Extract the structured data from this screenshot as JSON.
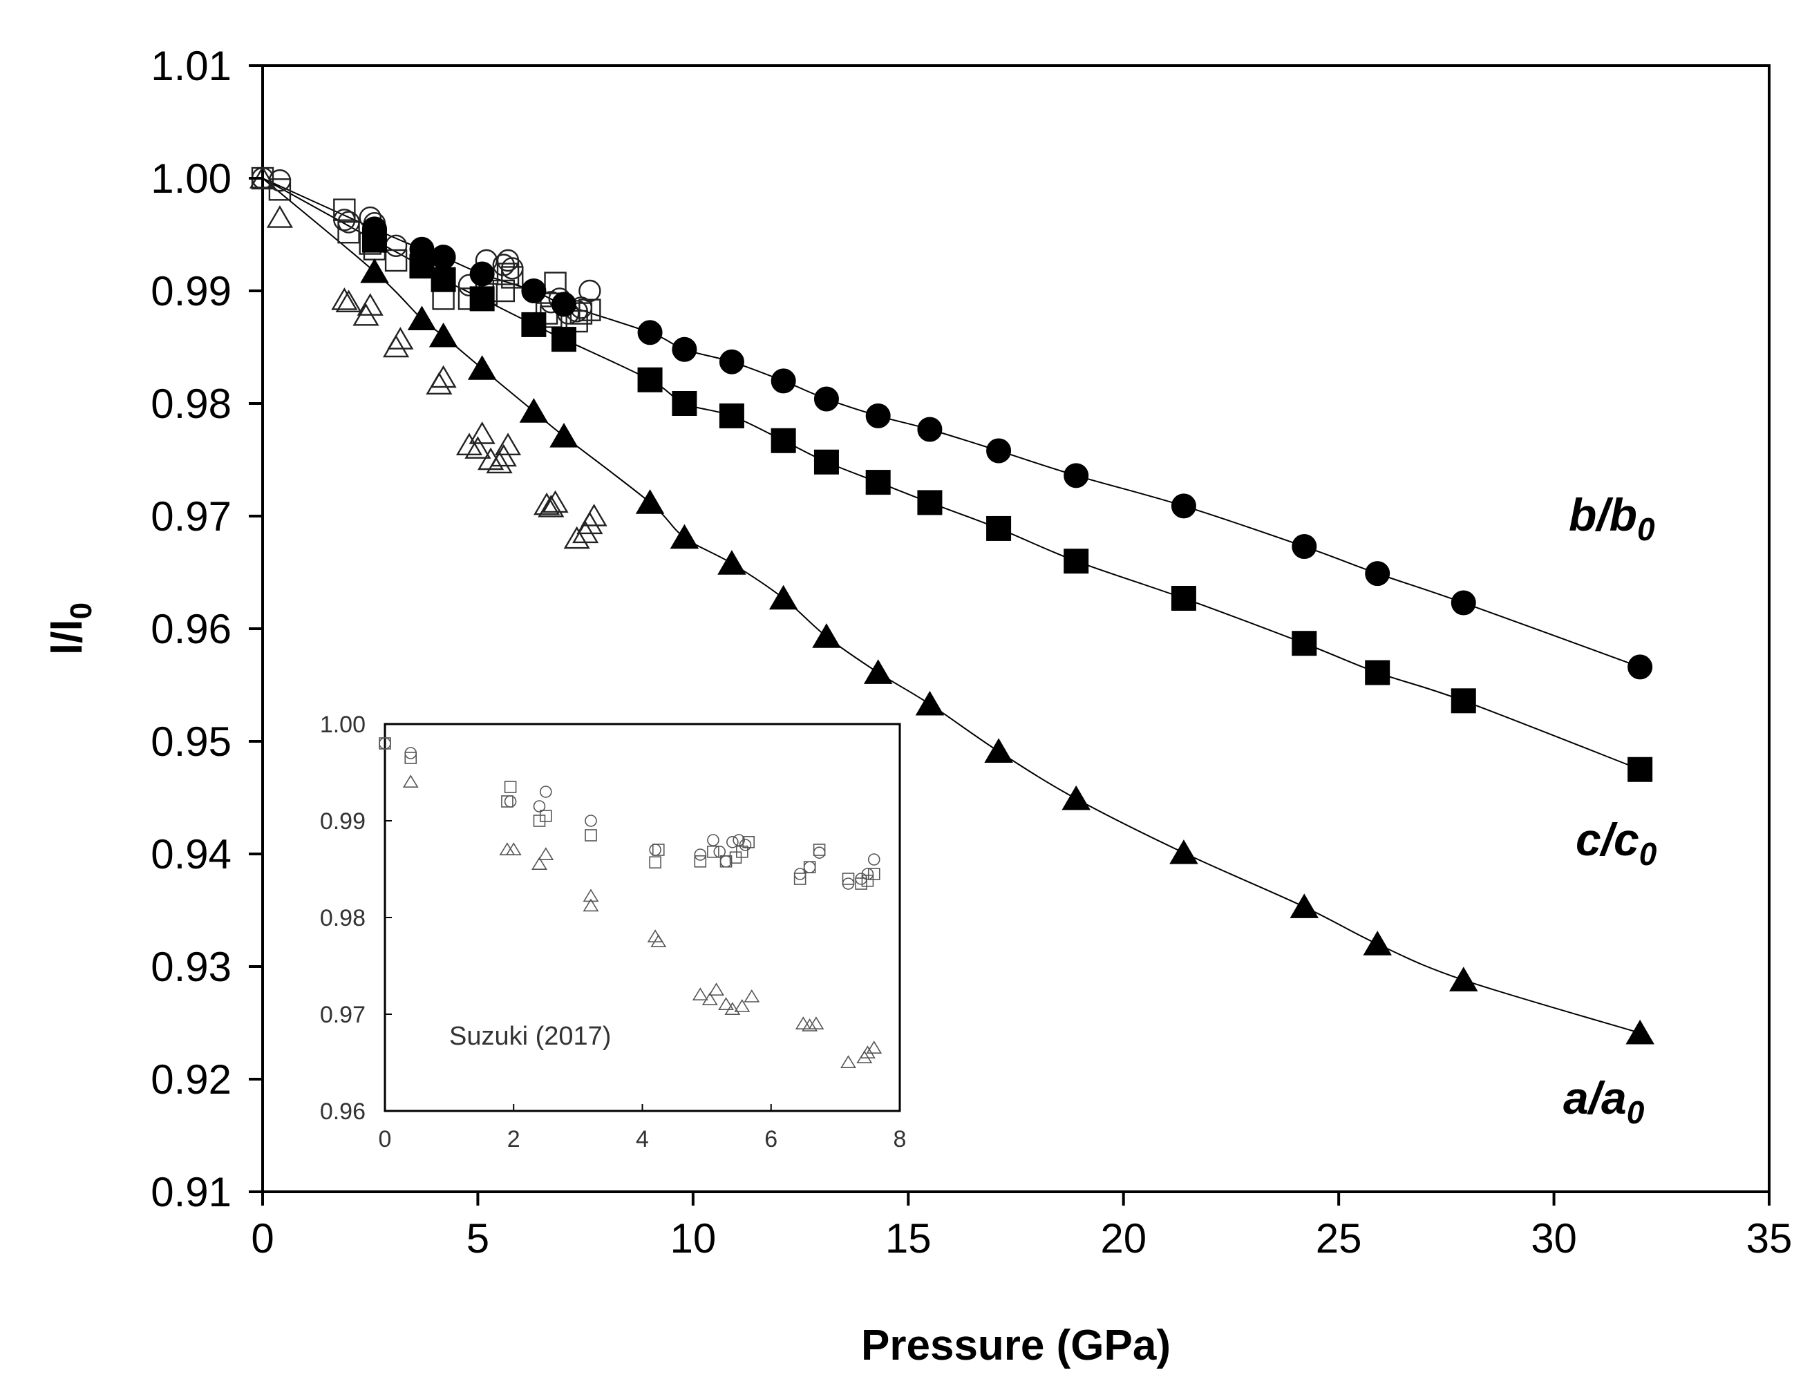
{
  "chart_data": [
    {
      "type": "scatter",
      "xlabel": "Pressure (GPa)",
      "ylabel": "l/l0",
      "ylabel_main": "l/l",
      "ylabel_sub": "0",
      "xlim": [
        0,
        35
      ],
      "ylim": [
        0.91,
        1.01
      ],
      "xticks": [
        0,
        5,
        10,
        15,
        20,
        25,
        30,
        35
      ],
      "yticks": [
        0.91,
        0.92,
        0.93,
        0.94,
        0.95,
        0.96,
        0.97,
        0.98,
        0.99,
        1.0,
        1.01
      ],
      "ytick_labels": [
        "0.91",
        "0.92",
        "0.93",
        "0.94",
        "0.95",
        "0.96",
        "0.97",
        "0.98",
        "0.99",
        "1.00",
        "1.01"
      ],
      "series": [
        {
          "name": "b/b0",
          "label_main": "b/b",
          "label_sub": "0",
          "marker": "filled-circle",
          "fit_line": true,
          "x": [
            2.6,
            3.7,
            4.2,
            5.1,
            6.3,
            7.0,
            9.0,
            9.8,
            10.9,
            12.1,
            13.1,
            14.3,
            15.5,
            17.1,
            18.9,
            21.4,
            24.2,
            25.9,
            27.9,
            32.0
          ],
          "y": [
            0.9955,
            0.9937,
            0.993,
            0.9915,
            0.99,
            0.9888,
            0.9863,
            0.9848,
            0.9837,
            0.982,
            0.9804,
            0.9789,
            0.9777,
            0.9758,
            0.9736,
            0.9709,
            0.9673,
            0.9649,
            0.9623,
            0.9566
          ]
        },
        {
          "name": "c/c0",
          "label_main": "c/c",
          "label_sub": "0",
          "marker": "filled-square",
          "fit_line": true,
          "x": [
            2.6,
            3.7,
            4.2,
            5.1,
            6.3,
            7.0,
            9.0,
            9.8,
            10.9,
            12.1,
            13.1,
            14.3,
            15.5,
            17.1,
            18.9,
            21.4,
            24.2,
            25.9,
            27.9,
            32.0
          ],
          "y": [
            0.9945,
            0.9922,
            0.991,
            0.9893,
            0.987,
            0.9857,
            0.9821,
            0.98,
            0.9789,
            0.9767,
            0.9748,
            0.973,
            0.9712,
            0.9689,
            0.966,
            0.9627,
            0.9587,
            0.9561,
            0.9536,
            0.9475
          ]
        },
        {
          "name": "a/a0",
          "label_main": "a/a",
          "label_sub": "0",
          "marker": "filled-triangle",
          "fit_line": true,
          "x": [
            2.6,
            3.7,
            4.2,
            5.1,
            6.3,
            7.0,
            9.0,
            9.8,
            10.9,
            12.1,
            13.1,
            14.3,
            15.5,
            17.1,
            18.9,
            21.4,
            24.2,
            25.9,
            27.9,
            32.0
          ],
          "y": [
            0.9917,
            0.9875,
            0.986,
            0.9831,
            0.9793,
            0.9771,
            0.9712,
            0.9681,
            0.9658,
            0.9627,
            0.9593,
            0.9561,
            0.9533,
            0.9491,
            0.9449,
            0.9401,
            0.9353,
            0.932,
            0.9288,
            0.9241
          ]
        },
        {
          "name": "b/b0 (open)",
          "marker": "open-circle",
          "fit_line": false,
          "x": [
            0,
            0.4,
            1.9,
            2.0,
            2.5,
            2.6,
            3.1,
            4.8,
            5.2,
            5.6,
            5.7,
            5.8,
            6.7,
            6.9,
            7.1,
            7.3,
            7.4,
            7.6
          ],
          "y": [
            1.0,
            0.9998,
            0.9963,
            0.9961,
            0.9965,
            0.996,
            0.994,
            0.9905,
            0.9927,
            0.9923,
            0.9927,
            0.992,
            0.989,
            0.9893,
            0.988,
            0.9882,
            0.9885,
            0.99
          ]
        },
        {
          "name": "c/c0 (open)",
          "marker": "open-square",
          "fit_line": false,
          "x": [
            0,
            0.4,
            1.9,
            2.0,
            2.5,
            2.6,
            3.1,
            4.2,
            4.8,
            5.2,
            5.6,
            5.7,
            5.8,
            6.6,
            6.7,
            6.8,
            7.3,
            7.4,
            7.6
          ],
          "y": [
            1.0,
            0.999,
            0.9972,
            0.9952,
            0.9942,
            0.9937,
            0.9927,
            0.9893,
            0.9893,
            0.9897,
            0.99,
            0.9915,
            0.9912,
            0.988,
            0.9877,
            0.9907,
            0.9873,
            0.988,
            0.9883
          ]
        },
        {
          "name": "a/a0 (open)",
          "marker": "open-triangle",
          "fit_line": false,
          "x": [
            0,
            0.4,
            1.9,
            2.0,
            2.4,
            2.5,
            3.1,
            3.2,
            4.1,
            4.2,
            4.8,
            5.0,
            5.1,
            5.3,
            5.5,
            5.6,
            5.7,
            6.6,
            6.7,
            6.8,
            7.3,
            7.5,
            7.6,
            7.7
          ],
          "y": [
            1.0,
            0.9965,
            0.9892,
            0.989,
            0.9878,
            0.9887,
            0.985,
            0.9857,
            0.9817,
            0.9823,
            0.9763,
            0.976,
            0.9773,
            0.975,
            0.9747,
            0.9753,
            0.9763,
            0.971,
            0.9708,
            0.9712,
            0.968,
            0.9685,
            0.9693,
            0.97
          ]
        }
      ]
    },
    {
      "type": "scatter",
      "title": "Suzuki (2017)",
      "xlim": [
        0,
        8
      ],
      "ylim": [
        0.96,
        1.0
      ],
      "xticks": [
        0,
        2,
        4,
        6,
        8
      ],
      "yticks": [
        0.96,
        0.97,
        0.98,
        0.99,
        1.0
      ],
      "ytick_labels": [
        "0.96",
        "0.97",
        "0.98",
        "0.99",
        "1.00"
      ],
      "series": [
        {
          "name": "b/b0",
          "marker": "open-circle",
          "x": [
            0,
            0.4,
            1.95,
            2.4,
            2.5,
            3.2,
            4.2,
            4.9,
            5.1,
            5.2,
            5.3,
            5.4,
            5.5,
            5.6,
            6.45,
            6.6,
            6.75,
            7.2,
            7.4,
            7.5,
            7.6
          ],
          "y": [
            0.998,
            0.997,
            0.992,
            0.9915,
            0.993,
            0.99,
            0.987,
            0.9865,
            0.988,
            0.9868,
            0.9858,
            0.9878,
            0.988,
            0.9875,
            0.9845,
            0.9852,
            0.9867,
            0.9835,
            0.984,
            0.9845,
            0.986
          ]
        },
        {
          "name": "c/c0",
          "marker": "open-square",
          "x": [
            0,
            0.4,
            1.95,
            1.9,
            2.4,
            2.5,
            3.2,
            4.2,
            4.25,
            4.9,
            5.1,
            5.3,
            5.45,
            5.55,
            5.65,
            6.45,
            6.6,
            6.75,
            7.2,
            7.4,
            7.5,
            7.6
          ],
          "y": [
            0.998,
            0.9965,
            0.9935,
            0.992,
            0.99,
            0.9905,
            0.9885,
            0.9857,
            0.987,
            0.9858,
            0.9868,
            0.9858,
            0.9862,
            0.9868,
            0.9878,
            0.984,
            0.9852,
            0.987,
            0.984,
            0.9835,
            0.9838,
            0.9845
          ]
        },
        {
          "name": "a/a0",
          "marker": "open-triangle",
          "x": [
            0.4,
            1.9,
            2.0,
            2.4,
            2.5,
            3.2,
            3.2,
            4.2,
            4.25,
            4.9,
            5.05,
            5.15,
            5.3,
            5.4,
            5.55,
            5.7,
            6.5,
            6.6,
            6.7,
            7.2,
            7.45,
            7.5,
            7.6
          ],
          "y": [
            0.994,
            0.987,
            0.987,
            0.9855,
            0.9865,
            0.9822,
            0.9812,
            0.978,
            0.9775,
            0.972,
            0.9715,
            0.9725,
            0.971,
            0.9705,
            0.9708,
            0.9718,
            0.969,
            0.9688,
            0.969,
            0.965,
            0.9655,
            0.966,
            0.9665
          ]
        }
      ]
    }
  ]
}
